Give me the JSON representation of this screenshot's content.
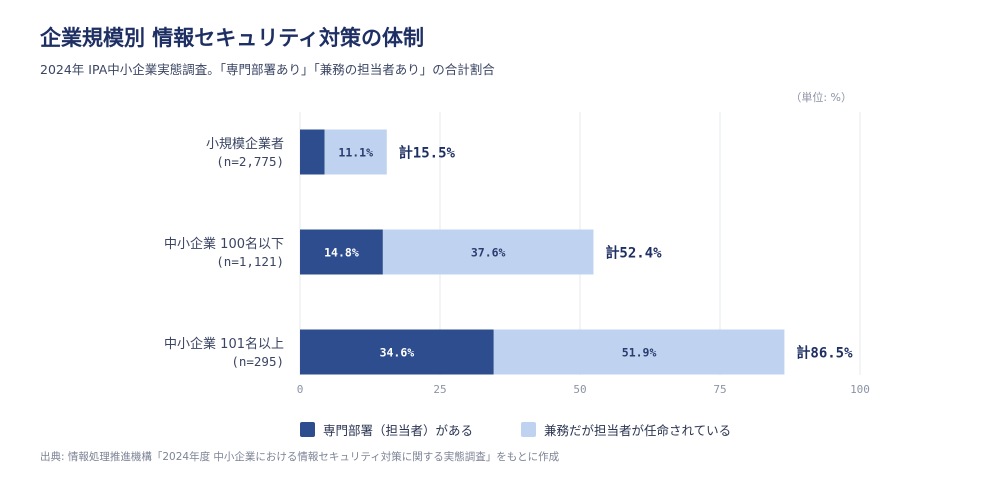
{
  "title": "企業規模別 情報セキュリティ対策の体制",
  "subtitle": "2024年 IPA中小企業実態調査。「専門部署あり」「兼務の担当者あり」の合計割合",
  "unit": "（単位: %）",
  "source": "出典: 情報処理推進機構「2024年度 中小企業における情報セキュリティ対策に関する実態調査」をもとに作成",
  "colors": {
    "dedicated": "#2e4d8f",
    "concurrent": "#bfd3f0",
    "grid": "#e6e8ee",
    "axis_text": "#8c93a6"
  },
  "chart_data": {
    "type": "bar",
    "orientation": "horizontal",
    "stacked": true,
    "categories": [
      {
        "name": "小規模企業者",
        "sample": "(n=2,775)"
      },
      {
        "name": "中小企業 100名以下",
        "sample": "(n=1,121)"
      },
      {
        "name": "中小企業 101名以上",
        "sample": "(n=295)"
      }
    ],
    "series": [
      {
        "name": "専門部署（担当者）がある",
        "values": [
          4.4,
          14.8,
          34.6
        ],
        "labels": [
          "",
          "14.8%",
          "34.6%"
        ]
      },
      {
        "name": "兼務だが担当者が任命されている",
        "values": [
          11.1,
          37.6,
          51.9
        ],
        "labels": [
          "11.1%",
          "37.6%",
          "51.9%"
        ]
      }
    ],
    "totals": [
      "計15.5%",
      "計52.4%",
      "計86.5%"
    ],
    "xlim": [
      0,
      100
    ],
    "xticks": [
      0,
      25,
      50,
      75,
      100
    ],
    "grid": true,
    "legend_position": "bottom"
  }
}
